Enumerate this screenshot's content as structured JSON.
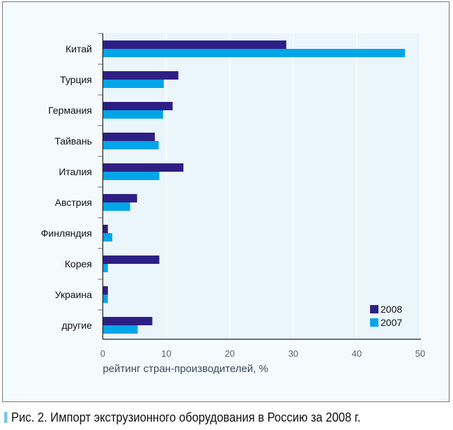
{
  "chart_data": {
    "type": "bar",
    "orientation": "horizontal",
    "categories": [
      "Китай",
      "Турция",
      "Германия",
      "Тайвань",
      "Италия",
      "Австрия",
      "Финляндия",
      "Корея",
      "Украина",
      "другие"
    ],
    "series": [
      {
        "name": "2008",
        "color": "#2e1f85",
        "values": [
          28.9,
          11.9,
          11.0,
          8.2,
          12.7,
          5.4,
          0.8,
          8.9,
          0.8,
          7.8
        ]
      },
      {
        "name": "2007",
        "color": "#00a5e8",
        "values": [
          47.6,
          9.6,
          9.5,
          8.8,
          8.9,
          4.3,
          1.5,
          0.8,
          0.8,
          5.5
        ]
      }
    ],
    "xlabel": "рейтинг стран-производителей, %",
    "xlim": [
      0,
      50
    ],
    "xticks": [
      "0",
      "10",
      "20",
      "30",
      "40",
      "50"
    ],
    "grid": "vertical",
    "legend_position": "bottom-right",
    "plot_background": "#eaf5fc"
  },
  "caption": "Рис. 2. Импорт экструзионного оборудования в Россию за 2008 г."
}
